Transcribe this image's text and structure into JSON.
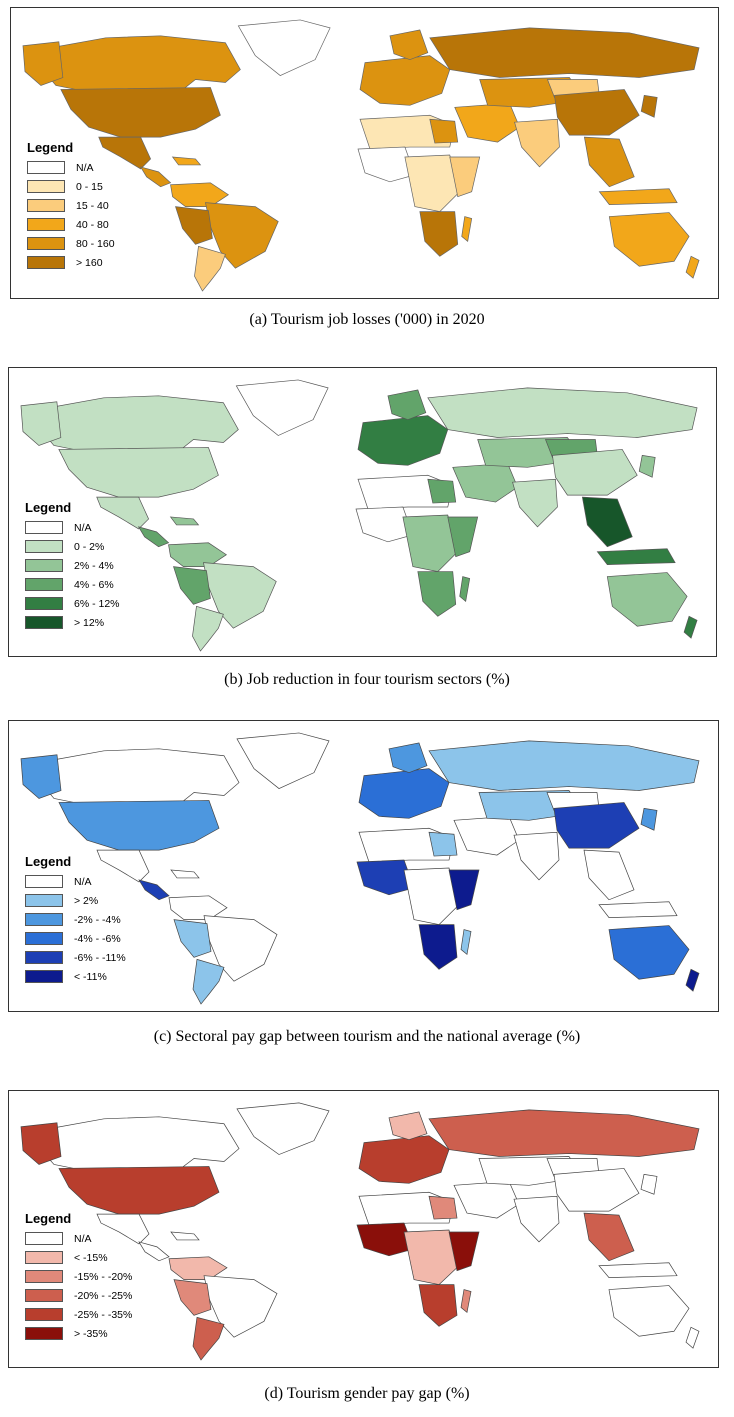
{
  "panels": [
    {
      "caption": "(a)   Tourism job losses ('000) in 2020",
      "legend_title": "Legend",
      "legend": [
        {
          "label": "N/A",
          "color": "#ffffff"
        },
        {
          "label": "0 - 15",
          "color": "#fde6b4"
        },
        {
          "label": "15 - 40",
          "color": "#fbcc7c"
        },
        {
          "label": "40 - 80",
          "color": "#f2a71a"
        },
        {
          "label": "80 - 160",
          "color": "#dc9310"
        },
        {
          "label": "> 160",
          "color": "#b87508"
        }
      ]
    },
    {
      "caption": "(b)   Job reduction in four tourism sectors (%)",
      "legend_title": "Legend",
      "legend": [
        {
          "label": "N/A",
          "color": "#ffffff"
        },
        {
          "label": "0 - 2%",
          "color": "#c2e0c3"
        },
        {
          "label": "2% - 4%",
          "color": "#93c597"
        },
        {
          "label": "4% - 6%",
          "color": "#62a46a"
        },
        {
          "label": "6% - 12%",
          "color": "#327e43"
        },
        {
          "label": "> 12%",
          "color": "#17562a"
        }
      ]
    },
    {
      "caption": "(c)   Sectoral pay gap between tourism and the national average (%)",
      "legend_title": "Legend",
      "legend": [
        {
          "label": "N/A",
          "color": "#ffffff"
        },
        {
          "label": "> 2%",
          "color": "#8cc4ea"
        },
        {
          "label": "-2% - -4%",
          "color": "#4d97df"
        },
        {
          "label": "-4% - -6%",
          "color": "#2b6fd6"
        },
        {
          "label": "-6% - -11%",
          "color": "#1d3fb4"
        },
        {
          "label": "< -11%",
          "color": "#0d1b8e"
        }
      ]
    },
    {
      "caption": "(d)   Tourism gender pay gap (%)",
      "legend_title": "Legend",
      "legend": [
        {
          "label": "N/A",
          "color": "#ffffff"
        },
        {
          "label": "< -15%",
          "color": "#f2b8ab"
        },
        {
          "label": "-15% - -20%",
          "color": "#e0897a"
        },
        {
          "label": "-20% - -25%",
          "color": "#cd5f4e"
        },
        {
          "label": "-25% - -35%",
          "color": "#b83e2d"
        },
        {
          "label": "> -35%",
          "color": "#8a0f0a"
        }
      ]
    }
  ]
}
